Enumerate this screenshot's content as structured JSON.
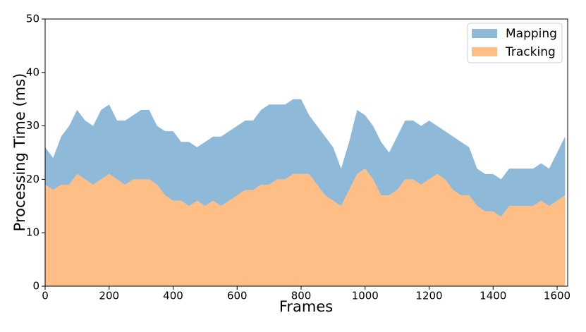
{
  "chart_data": {
    "type": "stacked_area",
    "xlabel": "Frames",
    "ylabel": "Processing Time (ms)",
    "x": [
      0,
      25,
      50,
      75,
      100,
      125,
      150,
      175,
      200,
      225,
      250,
      275,
      300,
      325,
      350,
      375,
      400,
      425,
      450,
      475,
      500,
      525,
      550,
      575,
      600,
      625,
      650,
      675,
      700,
      725,
      750,
      775,
      800,
      825,
      850,
      875,
      900,
      925,
      950,
      975,
      1000,
      1025,
      1050,
      1075,
      1100,
      1125,
      1150,
      1175,
      1200,
      1225,
      1250,
      1275,
      1300,
      1325,
      1350,
      1375,
      1400,
      1425,
      1450,
      1475,
      1500,
      1525,
      1550,
      1575,
      1600,
      1625
    ],
    "series": [
      {
        "name": "Tracking",
        "color": "#ffbe86",
        "values": [
          19,
          18,
          19,
          19,
          21,
          20,
          19,
          20,
          21,
          20,
          19,
          20,
          20,
          20,
          19,
          17,
          16,
          16,
          15,
          16,
          15,
          16,
          15,
          16,
          17,
          18,
          18,
          19,
          19,
          20,
          20,
          21,
          21,
          21,
          19,
          17,
          16,
          15,
          18,
          21,
          22,
          20,
          17,
          17,
          18,
          20,
          20,
          19,
          20,
          21,
          20,
          18,
          17,
          17,
          15,
          14,
          14,
          13,
          15,
          15,
          15,
          15,
          16,
          15,
          16,
          17
        ]
      },
      {
        "name": "Mapping",
        "color": "#8fb9d9",
        "values": [
          7,
          6,
          9,
          11,
          12,
          11,
          11,
          13,
          13,
          11,
          12,
          12,
          13,
          13,
          11,
          12,
          13,
          11,
          12,
          10,
          12,
          12,
          13,
          13,
          13,
          13,
          13,
          14,
          15,
          14,
          14,
          14,
          14,
          11,
          11,
          11,
          10,
          7,
          9,
          12,
          10,
          10,
          10,
          8,
          10,
          11,
          11,
          11,
          11,
          9,
          9,
          10,
          10,
          9,
          7,
          7,
          7,
          7,
          7,
          7,
          7,
          7,
          7,
          7,
          9,
          11
        ]
      }
    ],
    "legend_order": [
      1,
      0
    ],
    "legend": "upper right",
    "xlim": [
      0,
      1633
    ],
    "xticks": [
      0,
      200,
      400,
      600,
      800,
      1000,
      1200,
      1400,
      1600
    ],
    "ylim": [
      0,
      50
    ],
    "yticks": [
      0,
      10,
      20,
      30,
      40,
      50
    ]
  }
}
